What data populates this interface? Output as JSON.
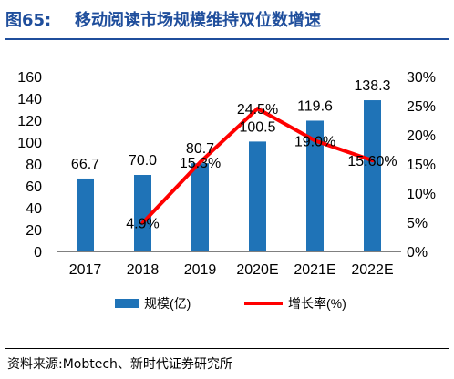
{
  "figure_number": "图65:",
  "figure_title": "移动阅读市场规模维持双位数增速",
  "source_note": "资料来源:Mobtech、新时代证券研究所",
  "colors": {
    "bar": "#1f73b7",
    "line": "#ff0000",
    "title": "#1f4e9c"
  },
  "chart_data": {
    "type": "bar+line",
    "categories": [
      "2017",
      "2018",
      "2019",
      "2020E",
      "2021E",
      "2022E"
    ],
    "series": [
      {
        "name": "规模(亿)",
        "type": "bar",
        "axis": "left",
        "values": [
          66.7,
          70.0,
          80.7,
          100.5,
          119.6,
          138.3
        ],
        "labels": [
          "66.7",
          "70.0",
          "80.7",
          "100.5",
          "119.6",
          "138.3"
        ]
      },
      {
        "name": "增长率(%)",
        "type": "line",
        "axis": "right",
        "values": [
          null,
          4.9,
          15.3,
          24.5,
          19.0,
          15.6
        ],
        "labels": [
          "",
          "4.9%",
          "15.3%",
          "24.5%",
          "19.0%",
          "15.60%"
        ]
      }
    ],
    "y_left": {
      "min": 0,
      "max": 160,
      "ticks": [
        "0",
        "20",
        "40",
        "60",
        "80",
        "100",
        "120",
        "140",
        "160"
      ]
    },
    "y_right": {
      "min": 0,
      "max": 30,
      "ticks": [
        "0%",
        "5%",
        "10%",
        "15%",
        "20%",
        "25%",
        "30%"
      ]
    },
    "legend": {
      "position": "bottom",
      "items": [
        "规模(亿)",
        "增长率(%)"
      ]
    },
    "grid": false
  }
}
